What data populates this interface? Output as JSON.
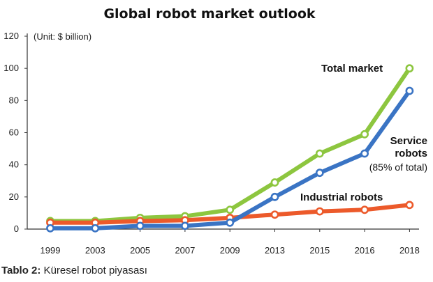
{
  "chart_data": {
    "type": "line",
    "title": "Global robot market outlook",
    "unit_label": "(Unit: $ billion)",
    "categories": [
      "1999",
      "2003",
      "2005",
      "2007",
      "2009",
      "2013",
      "2015",
      "2016",
      "2018"
    ],
    "ylim": [
      0,
      120
    ],
    "yticks": [
      0,
      20,
      40,
      60,
      80,
      100,
      120
    ],
    "grid": false,
    "series": [
      {
        "name": "Total market",
        "color": "#8dc63f",
        "values": [
          5,
          5,
          7,
          8,
          12,
          29,
          47,
          59,
          100
        ]
      },
      {
        "name": "Industrial robots",
        "color": "#ec5a2b",
        "values": [
          4,
          4,
          5,
          5.5,
          7,
          9,
          11,
          12,
          15
        ]
      },
      {
        "name": "Service robots",
        "color": "#3a74c4",
        "values": [
          0.5,
          0.5,
          2,
          2,
          4,
          20,
          35,
          47,
          86
        ]
      }
    ],
    "annotations": {
      "total": "Total market",
      "service_line1": "Service",
      "service_line2": "robots",
      "service_note": "(85% of total)",
      "industrial": "Industrial robots"
    }
  },
  "caption": {
    "prefix": "Tablo 2:",
    "text": " Küresel robot piyasası"
  }
}
